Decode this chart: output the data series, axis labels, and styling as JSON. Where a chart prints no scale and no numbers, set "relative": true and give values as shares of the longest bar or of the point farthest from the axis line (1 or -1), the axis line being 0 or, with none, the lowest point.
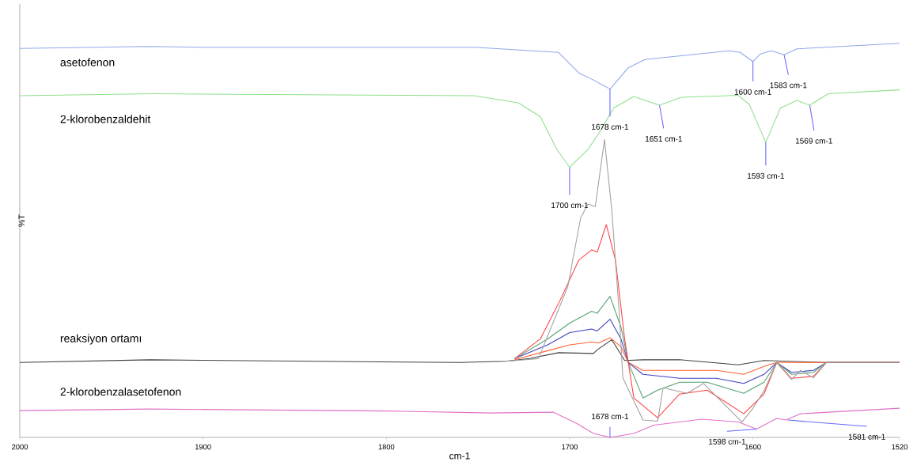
{
  "chart_data": {
    "type": "line",
    "relative": true,
    "xlabel": "cm-1",
    "ylabel": "%T",
    "xlim": [
      2000,
      1520
    ],
    "xticks": [
      2000,
      1900,
      1800,
      1700,
      1600,
      1520
    ],
    "marker": "none",
    "series": [
      {
        "name": "asetofenon",
        "color": "#8fa8e8",
        "x": [
          2000,
          1930,
          1900,
          1752,
          1706,
          1695,
          1687,
          1678,
          1668,
          1659,
          1613,
          1607,
          1600,
          1596,
          1590,
          1583,
          1576,
          1520
        ],
        "values": [
          0.987,
          0.992,
          0.99,
          0.99,
          0.977,
          0.925,
          0.907,
          0.884,
          0.938,
          0.959,
          0.981,
          0.977,
          0.954,
          0.973,
          0.981,
          0.971,
          0.986,
          1.0
        ]
      },
      {
        "name": "2-klorobenzaldehit",
        "color": "#8fe08a",
        "x": [
          2000,
          1926,
          1752,
          1728,
          1716,
          1707,
          1700,
          1690,
          1684,
          1676,
          1665,
          1651,
          1639,
          1608,
          1602,
          1593,
          1585,
          1576,
          1569,
          1559,
          1520
        ],
        "values": [
          0.867,
          0.872,
          0.867,
          0.849,
          0.814,
          0.731,
          0.685,
          0.731,
          0.772,
          0.836,
          0.865,
          0.843,
          0.863,
          0.868,
          0.845,
          0.749,
          0.836,
          0.855,
          0.843,
          0.872,
          0.882
        ]
      },
      {
        "name": "reaksiyon ortamı",
        "color": "#404040",
        "x": [
          2000,
          1929,
          1760,
          1735,
          1722,
          1706,
          1687,
          1685,
          1677,
          1670,
          1660,
          1640,
          1608,
          1594,
          1560,
          1520
        ],
        "values": [
          0.19,
          0.197,
          0.19,
          0.193,
          0.2,
          0.215,
          0.213,
          0.222,
          0.248,
          0.195,
          0.197,
          0.197,
          0.184,
          0.195,
          0.19,
          0.19
        ]
      },
      {
        "color": "#ff6030",
        "x": [
          1730,
          1712,
          1700,
          1688,
          1684,
          1678,
          1672,
          1668,
          1660,
          1640,
          1620,
          1605,
          1594,
          1587,
          1560,
          1520
        ],
        "values": [
          0.197,
          0.22,
          0.235,
          0.242,
          0.24,
          0.253,
          0.23,
          0.19,
          0.17,
          0.17,
          0.17,
          0.16,
          0.18,
          0.19,
          0.19,
          0.19
        ]
      },
      {
        "color": "#4040c0",
        "x": [
          1730,
          1712,
          1700,
          1688,
          1685,
          1678,
          1672,
          1668,
          1660,
          1640,
          1620,
          1605,
          1594,
          1587,
          1579,
          1567,
          1560,
          1520
        ],
        "values": [
          0.2,
          0.235,
          0.266,
          0.275,
          0.27,
          0.3,
          0.25,
          0.19,
          0.16,
          0.15,
          0.15,
          0.137,
          0.16,
          0.19,
          0.165,
          0.17,
          0.19,
          0.19
        ]
      },
      {
        "color": "#50a070",
        "x": [
          1730,
          1712,
          1700,
          1688,
          1685,
          1678,
          1672,
          1668,
          1660,
          1652,
          1640,
          1625,
          1605,
          1594,
          1587,
          1579,
          1567,
          1560,
          1520
        ],
        "values": [
          0.2,
          0.25,
          0.29,
          0.32,
          0.315,
          0.358,
          0.28,
          0.19,
          0.1,
          0.12,
          0.14,
          0.14,
          0.112,
          0.14,
          0.19,
          0.16,
          0.165,
          0.19,
          0.19
        ]
      },
      {
        "color": "#ff4040",
        "x": [
          1730,
          1716,
          1705,
          1695,
          1688,
          1685,
          1680,
          1675,
          1670,
          1665,
          1652,
          1640,
          1625,
          1605,
          1594,
          1587,
          1579,
          1567,
          1560,
          1520
        ],
        "values": [
          0.2,
          0.25,
          0.35,
          0.45,
          0.476,
          0.47,
          0.54,
          0.45,
          0.25,
          0.1,
          0.05,
          0.11,
          0.12,
          0.06,
          0.11,
          0.19,
          0.15,
          0.155,
          0.19,
          0.19
        ]
      },
      {
        "color": "#a0a0a0",
        "x": [
          1735,
          1717,
          1701,
          1694,
          1690,
          1686,
          1681,
          1677,
          1673,
          1671,
          1660,
          1652,
          1649,
          1636,
          1627,
          1606,
          1600,
          1594,
          1587,
          1579,
          1574,
          1567,
          1560,
          1520
        ],
        "values": [
          0.193,
          0.2,
          0.383,
          0.557,
          0.592,
          0.586,
          0.756,
          0.576,
          0.319,
          0.151,
          0.044,
          0.041,
          0.126,
          0.112,
          0.137,
          0.039,
          0.074,
          0.118,
          0.19,
          0.147,
          0.17,
          0.151,
          0.19,
          0.19
        ]
      },
      {
        "name": "2-klorobenzalasetofenon",
        "color": "#e070c8",
        "x": [
          2000,
          1929,
          1800,
          1743,
          1709,
          1696,
          1687,
          1678,
          1665,
          1654,
          1628,
          1608,
          1598,
          1587,
          1582,
          1574,
          1520
        ],
        "values": [
          0.068,
          0.072,
          0.067,
          0.062,
          0.064,
          0.035,
          0.01,
          0.0,
          0.01,
          0.031,
          0.046,
          0.039,
          0.021,
          0.048,
          0.044,
          0.06,
          0.074
        ]
      }
    ],
    "annotations": [
      {
        "text": "1678 cm-1",
        "x": 1678,
        "y": 0.884
      },
      {
        "text": "1600 cm-1",
        "x": 1600,
        "y": 0.954
      },
      {
        "text": "1583 cm-1",
        "x": 1583,
        "y": 0.971
      },
      {
        "text": "1651 cm-1",
        "x": 1651,
        "y": 0.843
      },
      {
        "text": "1593 cm-1",
        "x": 1593,
        "y": 0.749
      },
      {
        "text": "1569 cm-1",
        "x": 1569,
        "y": 0.843
      },
      {
        "text": "1700 cm-1",
        "x": 1700,
        "y": 0.685
      },
      {
        "text": "1678 cm-1",
        "x": 1678,
        "y": 0.0
      },
      {
        "text": "1598 cm-1",
        "x": 1598,
        "y": 0.021
      },
      {
        "text": "1581 cm-1",
        "x": 1581,
        "y": 0.044
      }
    ]
  }
}
